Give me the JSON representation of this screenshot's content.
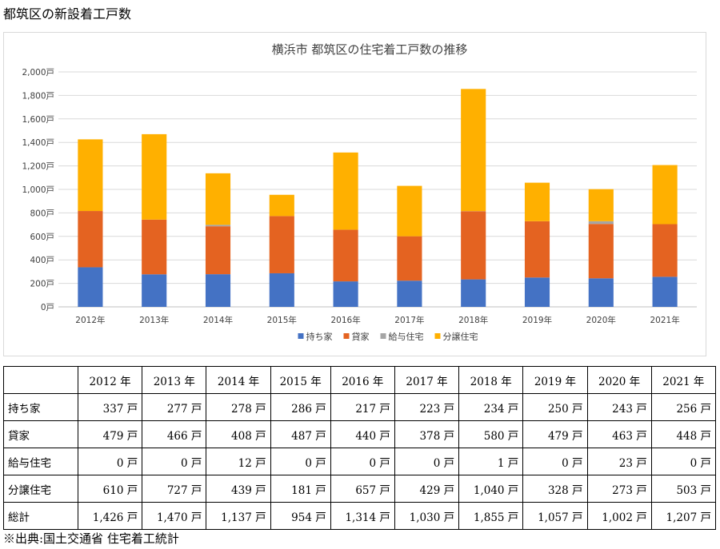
{
  "page": {
    "heading": "都筑区の新設着工戸数",
    "source": "※出典:国土交通省 住宅着工統計"
  },
  "chart_data": {
    "type": "bar",
    "stacked": true,
    "title": "横浜市 都筑区の住宅着工戸数の推移",
    "categories": [
      "2012年",
      "2013年",
      "2014年",
      "2015年",
      "2016年",
      "2017年",
      "2018年",
      "2019年",
      "2020年",
      "2021年"
    ],
    "series": [
      {
        "name": "持ち家",
        "color": "#4472c4",
        "values": [
          337,
          277,
          278,
          286,
          217,
          223,
          234,
          250,
          243,
          256
        ]
      },
      {
        "name": "貸家",
        "color": "#e46321",
        "values": [
          479,
          466,
          408,
          487,
          440,
          378,
          580,
          479,
          463,
          448
        ]
      },
      {
        "name": "給与住宅",
        "color": "#a5a5a5",
        "values": [
          0,
          0,
          12,
          0,
          0,
          0,
          1,
          0,
          23,
          0
        ]
      },
      {
        "name": "分譲住宅",
        "color": "#ffb000",
        "values": [
          610,
          727,
          439,
          181,
          657,
          429,
          1040,
          328,
          273,
          503
        ]
      }
    ],
    "ylim": [
      0,
      2000
    ],
    "yticks": [
      "0戸",
      "200戸",
      "400戸",
      "600戸",
      "800戸",
      "1,000戸",
      "1,200戸",
      "1,400戸",
      "1,600戸",
      "1,800戸",
      "2,000戸"
    ],
    "grid": true,
    "legend_position": "bottom"
  },
  "table": {
    "headers": [
      "",
      "2012 年",
      "2013 年",
      "2014 年",
      "2015 年",
      "2016 年",
      "2017 年",
      "2018 年",
      "2019 年",
      "2020 年",
      "2021 年"
    ],
    "rows": [
      {
        "label": "持ち家",
        "cells": [
          "337 戸",
          "277 戸",
          "278 戸",
          "286 戸",
          "217 戸",
          "223 戸",
          "234 戸",
          "250 戸",
          "243 戸",
          "256 戸"
        ]
      },
      {
        "label": "貸家",
        "cells": [
          "479 戸",
          "466 戸",
          "408 戸",
          "487 戸",
          "440 戸",
          "378 戸",
          "580 戸",
          "479 戸",
          "463 戸",
          "448 戸"
        ]
      },
      {
        "label": "給与住宅",
        "cells": [
          "0 戸",
          "0 戸",
          "12 戸",
          "0 戸",
          "0 戸",
          "0 戸",
          "1 戸",
          "0 戸",
          "23 戸",
          "0 戸"
        ]
      },
      {
        "label": "分譲住宅",
        "cells": [
          "610 戸",
          "727 戸",
          "439 戸",
          "181 戸",
          "657 戸",
          "429 戸",
          "1,040 戸",
          "328 戸",
          "273 戸",
          "503 戸"
        ]
      },
      {
        "label": "総計",
        "cells": [
          "1,426 戸",
          "1,470 戸",
          "1,137 戸",
          "954 戸",
          "1,314 戸",
          "1,030 戸",
          "1,855 戸",
          "1,057 戸",
          "1,002 戸",
          "1,207 戸"
        ]
      }
    ]
  }
}
